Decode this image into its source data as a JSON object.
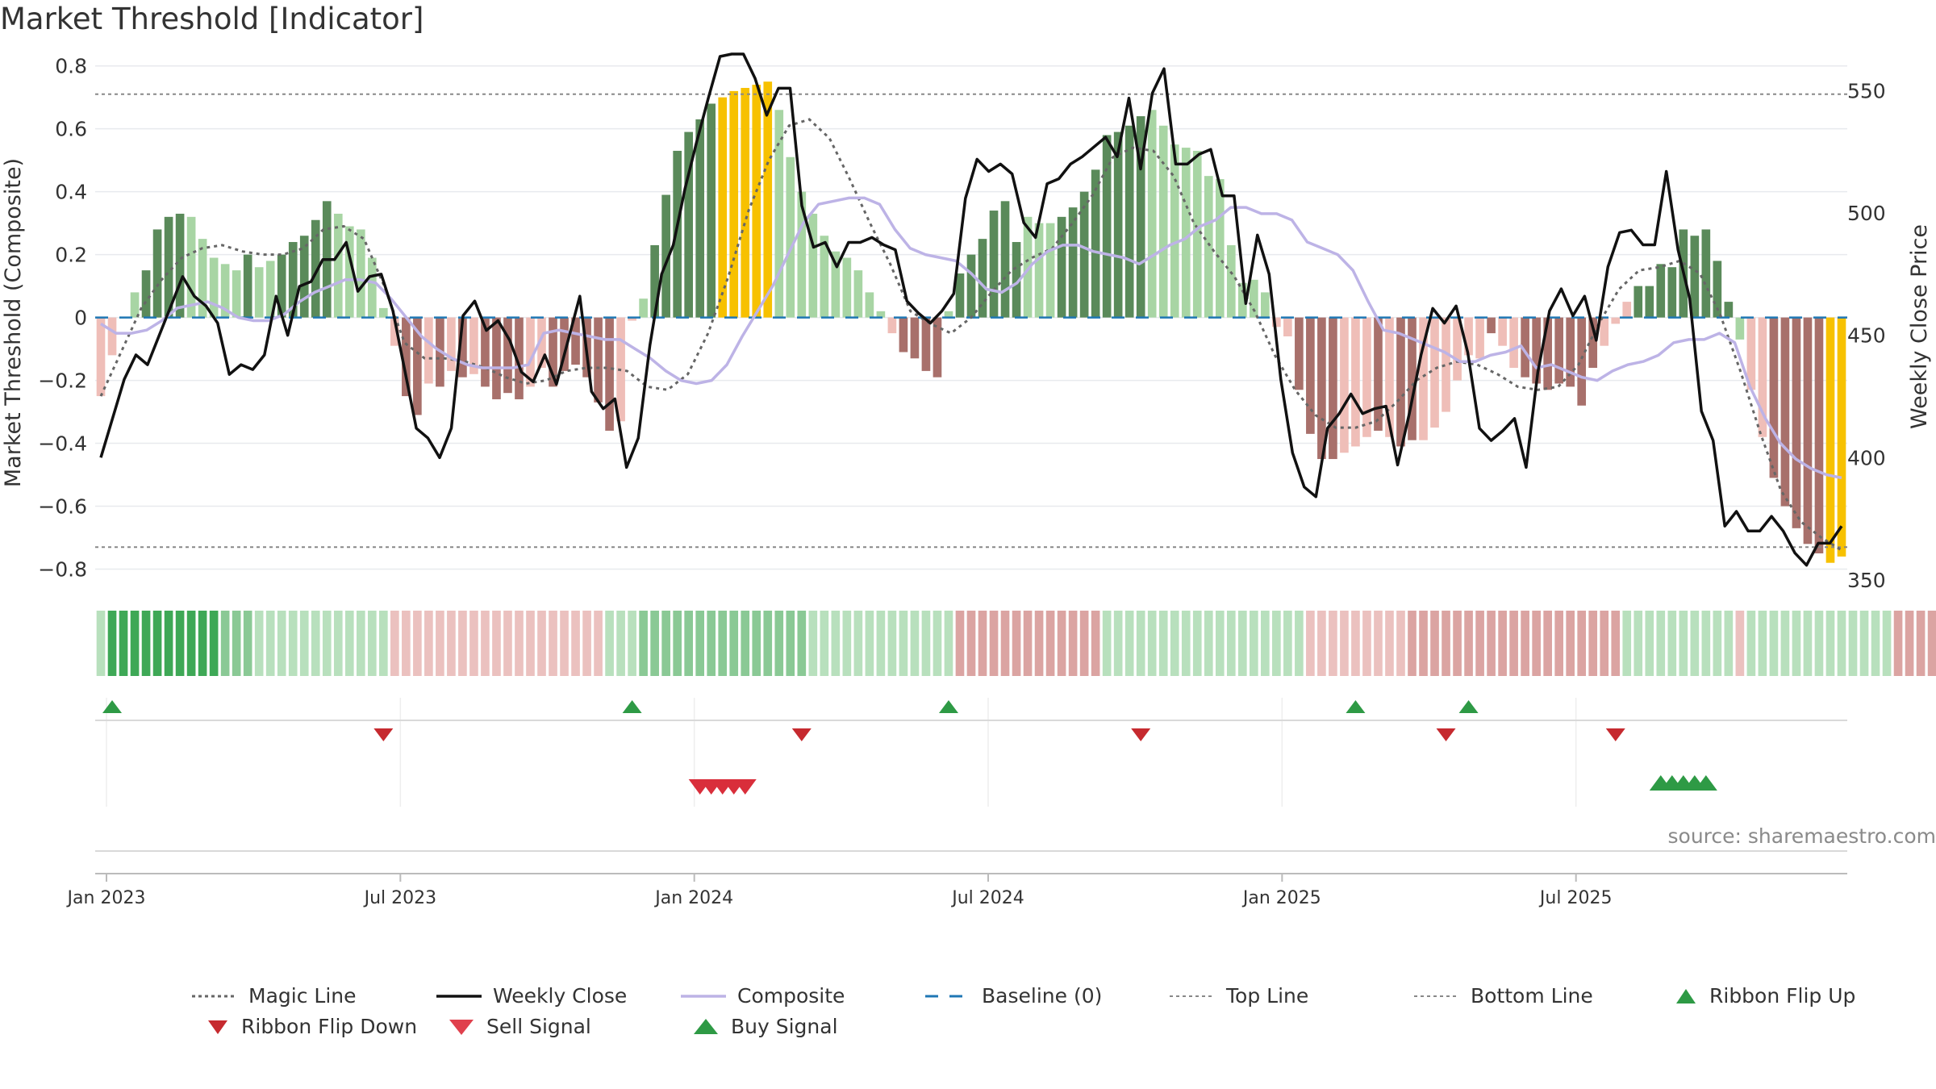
{
  "title": "Market Threshold [Indicator]",
  "source": "source: sharemaestro.com",
  "colors": {
    "strong_pos": "#5a8a5a",
    "weak_pos": "#a8d5a4",
    "strong_neg": "#a8706b",
    "weak_neg": "#efbeb8",
    "extreme": "#f7c100",
    "close": "#111111",
    "composite": "#bdb3e6",
    "magic": "#666666",
    "baseline": "#1f77b4",
    "buy": "#2e9a45",
    "sell": "#d92e3b",
    "flip_down": "#c62a2f"
  },
  "chart_data": {
    "type": "bar",
    "title": "Market Threshold [Indicator]",
    "ylabel": "Market Threshold (Composite)",
    "y2label": "Weekly Close Price",
    "ylim": [
      -0.85,
      0.83
    ],
    "y2lim": [
      348,
      564
    ],
    "y_ticks": [
      0.8,
      0.6,
      0.4,
      0.2,
      0,
      -0.2,
      -0.4,
      -0.6,
      -0.8
    ],
    "y_tick_labels": [
      "0.8",
      "0.6",
      "0.4",
      "0.2",
      "0",
      "−0.2",
      "−0.4",
      "−0.6",
      "−0.8"
    ],
    "y2_ticks": [
      350,
      400,
      450,
      500,
      550
    ],
    "y2_tick_labels": [
      "350",
      "400",
      "450",
      "500",
      "550"
    ],
    "x_tick_labels": [
      "Jan 2023",
      "Jul 2023",
      "Jan 2024",
      "Jul 2024",
      "Jan 2025",
      "Jul 2025"
    ],
    "x_tick_weeks": [
      0.5,
      26.5,
      52.5,
      78.5,
      104.5,
      130.5
    ],
    "top_line": 0.71,
    "bottom_line": -0.73,
    "grid": true,
    "legend_position": "bottom",
    "legend": [
      "Magic Line",
      "Weekly Close",
      "Composite",
      "Baseline (0)",
      "Top Line",
      "Bottom Line",
      "Ribbon Flip Up",
      "Ribbon Flip Down",
      "Sell Signal",
      "Buy Signal"
    ],
    "composite_bars": [
      -0.25,
      -0.12,
      0,
      0.08,
      0.15,
      0.28,
      0.32,
      0.33,
      0.32,
      0.25,
      0.19,
      0.17,
      0.15,
      0.2,
      0.16,
      0.18,
      0.2,
      0.24,
      0.26,
      0.31,
      0.37,
      0.33,
      0.29,
      0.28,
      0.19,
      0.03,
      -0.09,
      -0.25,
      -0.31,
      -0.21,
      -0.22,
      -0.17,
      -0.19,
      -0.18,
      -0.22,
      -0.26,
      -0.24,
      -0.26,
      -0.22,
      -0.16,
      -0.22,
      -0.17,
      -0.15,
      -0.19,
      -0.27,
      -0.36,
      -0.33,
      -0.01,
      0.06,
      0.23,
      0.39,
      0.53,
      0.59,
      0.63,
      0.68,
      0.7,
      0.72,
      0.73,
      0.74,
      0.75,
      0.66,
      0.51,
      0.4,
      0.33,
      0.26,
      0.21,
      0.19,
      0.15,
      0.08,
      0.02,
      -0.05,
      -0.11,
      -0.13,
      -0.17,
      -0.19,
      0.02,
      0.14,
      0.2,
      0.25,
      0.34,
      0.37,
      0.24,
      0.32,
      0.3,
      0.3,
      0.32,
      0.35,
      0.4,
      0.47,
      0.58,
      0.59,
      0.61,
      0.64,
      0.66,
      0.61,
      0.55,
      0.54,
      0.53,
      0.45,
      0.44,
      0.23,
      0.11,
      0.12,
      0.08,
      -0.03,
      -0.06,
      -0.23,
      -0.37,
      -0.45,
      -0.45,
      -0.43,
      -0.41,
      -0.38,
      -0.36,
      -0.38,
      -0.41,
      -0.39,
      -0.39,
      -0.35,
      -0.3,
      -0.2,
      -0.12,
      -0.13,
      -0.05,
      -0.09,
      -0.16,
      -0.19,
      -0.21,
      -0.23,
      -0.21,
      -0.22,
      -0.28,
      -0.16,
      -0.09,
      -0.02,
      0.05,
      0.1,
      0.1,
      0.17,
      0.16,
      0.28,
      0.26,
      0.28,
      0.18,
      0.05,
      -0.07,
      -0.23,
      -0.38,
      -0.51,
      -0.6,
      -0.67,
      -0.72,
      -0.75,
      -0.78,
      -0.76
    ],
    "bar_classes": [
      "wn",
      "wn",
      "wp",
      "wp",
      "sp",
      "sp",
      "sp",
      "sp",
      "wp",
      "wp",
      "wp",
      "wp",
      "wp",
      "sp",
      "wp",
      "wp",
      "sp",
      "sp",
      "sp",
      "sp",
      "sp",
      "wp",
      "wp",
      "wp",
      "wp",
      "wp",
      "wn",
      "sn",
      "sn",
      "wn",
      "sn",
      "wn",
      "sn",
      "wn",
      "sn",
      "sn",
      "sn",
      "sn",
      "wn",
      "wn",
      "sn",
      "sn",
      "sn",
      "sn",
      "sn",
      "sn",
      "wn",
      "wn",
      "wp",
      "sp",
      "sp",
      "sp",
      "sp",
      "sp",
      "sp",
      "ex",
      "ex",
      "ex",
      "ex",
      "ex",
      "wp",
      "wp",
      "wp",
      "wp",
      "wp",
      "wp",
      "wp",
      "wp",
      "wp",
      "wp",
      "wn",
      "sn",
      "sn",
      "sn",
      "sn",
      "wp",
      "sp",
      "sp",
      "sp",
      "sp",
      "sp",
      "sp",
      "wp",
      "wp",
      "wp",
      "sp",
      "sp",
      "sp",
      "sp",
      "sp",
      "sp",
      "sp",
      "sp",
      "wp",
      "wp",
      "wp",
      "wp",
      "wp",
      "wp",
      "wp",
      "wp",
      "wp",
      "wp",
      "wp",
      "wn",
      "wn",
      "sn",
      "sn",
      "sn",
      "sn",
      "wn",
      "wn",
      "wn",
      "sn",
      "wn",
      "sn",
      "sn",
      "wn",
      "wn",
      "wn",
      "wn",
      "wn",
      "wn",
      "sn",
      "wn",
      "wn",
      "sn",
      "sn",
      "sn",
      "sn",
      "sn",
      "sn",
      "sn",
      "wn",
      "wn",
      "wn",
      "sp",
      "sp",
      "sp",
      "sp",
      "sp",
      "sp",
      "sp",
      "sp",
      "sp",
      "wp",
      "wn",
      "wn",
      "sn",
      "sn",
      "sn",
      "sn",
      "sn",
      "ex",
      "ex",
      "ex",
      "ex",
      "ex",
      "ex"
    ],
    "weekly_close": [
      400,
      416,
      432,
      442,
      438,
      450,
      462,
      474,
      466,
      462,
      455,
      434,
      438,
      436,
      442,
      466,
      450,
      470,
      472,
      481,
      481,
      488,
      468,
      474,
      475,
      460,
      436,
      412,
      408,
      400,
      412,
      458,
      464,
      452,
      456,
      448,
      435,
      431,
      442,
      430,
      448,
      466,
      427,
      420,
      424,
      396,
      408,
      446,
      475,
      487,
      510,
      529,
      547,
      564,
      565,
      565,
      555,
      540,
      551,
      551,
      503,
      486,
      488,
      478,
      488,
      488,
      490,
      487,
      485,
      464,
      459,
      455,
      460,
      467,
      506,
      522,
      517,
      520,
      516,
      496,
      490,
      512,
      514,
      520,
      523,
      527,
      531,
      523,
      547,
      518,
      549,
      559,
      520,
      520,
      524,
      526,
      507,
      507,
      463,
      491,
      475,
      432,
      402,
      388,
      384,
      412,
      418,
      426,
      418,
      420,
      421,
      397,
      418,
      442,
      461,
      455,
      462,
      443,
      412,
      407,
      411,
      416,
      396,
      435,
      460,
      469,
      458,
      466,
      448,
      478,
      492,
      493,
      487,
      487,
      517,
      485,
      465,
      419,
      407,
      372,
      378,
      370,
      370,
      376,
      370,
      361,
      356,
      365,
      365,
      372
    ],
    "composite_line": [
      -0.02,
      -0.05,
      -0.05,
      -0.04,
      -0.01,
      0.03,
      0.04,
      0.05,
      0.03,
      0.0,
      -0.01,
      -0.01,
      0.01,
      0.05,
      0.08,
      0.1,
      0.12,
      0.12,
      0.11,
      0.06,
      0.0,
      -0.06,
      -0.1,
      -0.13,
      -0.15,
      -0.16,
      -0.16,
      -0.16,
      -0.15,
      -0.05,
      -0.04,
      -0.05,
      -0.06,
      -0.07,
      -0.07,
      -0.1,
      -0.13,
      -0.17,
      -0.2,
      -0.21,
      -0.2,
      -0.15,
      -0.06,
      0.02,
      0.1,
      0.2,
      0.3,
      0.36,
      0.37,
      0.38,
      0.38,
      0.36,
      0.28,
      0.22,
      0.2,
      0.19,
      0.18,
      0.14,
      0.09,
      0.08,
      0.11,
      0.17,
      0.21,
      0.23,
      0.23,
      0.21,
      0.2,
      0.19,
      0.17,
      0.2,
      0.23,
      0.25,
      0.29,
      0.31,
      0.35,
      0.35,
      0.33,
      0.33,
      0.31,
      0.24,
      0.22,
      0.2,
      0.15,
      0.05,
      -0.04,
      -0.05,
      -0.07,
      -0.09,
      -0.11,
      -0.14,
      -0.14,
      -0.12,
      -0.11,
      -0.09,
      -0.16,
      -0.15,
      -0.17,
      -0.19,
      -0.2,
      -0.17,
      -0.15,
      -0.14,
      -0.12,
      -0.08,
      -0.07,
      -0.07,
      -0.05,
      -0.08,
      -0.22,
      -0.32,
      -0.4,
      -0.45,
      -0.48,
      -0.5,
      -0.51
    ],
    "magic_line": [
      -0.25,
      -0.11,
      0.03,
      0.12,
      0.19,
      0.22,
      0.23,
      0.21,
      0.2,
      0.2,
      0.22,
      0.28,
      0.29,
      0.25,
      0.1,
      -0.08,
      -0.13,
      -0.13,
      -0.14,
      -0.16,
      -0.19,
      -0.21,
      -0.2,
      -0.17,
      -0.16,
      -0.16,
      -0.17,
      -0.22,
      -0.23,
      -0.18,
      -0.05,
      0.13,
      0.34,
      0.5,
      0.61,
      0.63,
      0.57,
      0.44,
      0.3,
      0.17,
      0.02,
      -0.02,
      -0.05,
      0.0,
      0.08,
      0.15,
      0.19,
      0.22,
      0.3,
      0.39,
      0.51,
      0.54,
      0.53,
      0.45,
      0.3,
      0.21,
      0.13,
      0.02,
      -0.12,
      -0.23,
      -0.31,
      -0.35,
      -0.35,
      -0.33,
      -0.27,
      -0.2,
      -0.16,
      -0.14,
      -0.15,
      -0.18,
      -0.22,
      -0.23,
      -0.22,
      -0.15,
      -0.02,
      0.09,
      0.15,
      0.16,
      0.18,
      0.14,
      0.01,
      -0.17,
      -0.37,
      -0.55,
      -0.65,
      -0.7,
      -0.74
    ],
    "ribbon": [
      1,
      3,
      3,
      3,
      3,
      3,
      3,
      3,
      3,
      3,
      3,
      2,
      2,
      2,
      1,
      1,
      1,
      1,
      1,
      1,
      1,
      1,
      1,
      1,
      1,
      1,
      -1,
      -1,
      -1,
      -1,
      -1,
      -1,
      -1,
      -1,
      -1,
      -1,
      -1,
      -1,
      -1,
      -1,
      -1,
      -1,
      -1,
      -1,
      -1,
      1,
      1,
      1,
      2,
      2,
      2,
      2,
      2,
      2,
      2,
      2,
      2,
      2,
      2,
      2,
      2,
      2,
      2,
      1,
      1,
      1,
      1,
      1,
      1,
      1,
      1,
      1,
      1,
      1,
      1,
      1,
      -2,
      -2,
      -2,
      -2,
      -2,
      -2,
      -2,
      -2,
      -2,
      -2,
      -2,
      -2,
      -2,
      1,
      1,
      1,
      1,
      1,
      1,
      1,
      1,
      1,
      1,
      1,
      1,
      1,
      1,
      1,
      1,
      1,
      1,
      -1,
      -1,
      -1,
      -1,
      -1,
      -1,
      -1,
      -1,
      -1,
      -2,
      -2,
      -2,
      -2,
      -2,
      -2,
      -2,
      -2,
      -2,
      -2,
      -2,
      -2,
      -2,
      -2,
      -2,
      -2,
      -2,
      -2,
      -2,
      1,
      1,
      1,
      1,
      1,
      1,
      1,
      1,
      1,
      1,
      -1,
      1,
      1,
      1,
      1,
      1,
      1,
      1,
      1,
      1,
      1,
      1,
      1,
      1,
      -2,
      -2,
      -2,
      -2,
      -2,
      -2,
      -2,
      -2,
      -2,
      -2
    ],
    "ribbon_flip_up_weeks": [
      1,
      47,
      75,
      111,
      121
    ],
    "ribbon_flip_down_weeks": [
      25,
      62,
      92,
      119,
      134
    ],
    "sell_signal_weeks": [
      53,
      54,
      55,
      56,
      57
    ],
    "buy_signal_weeks": [
      138,
      139,
      140,
      141,
      142
    ]
  }
}
